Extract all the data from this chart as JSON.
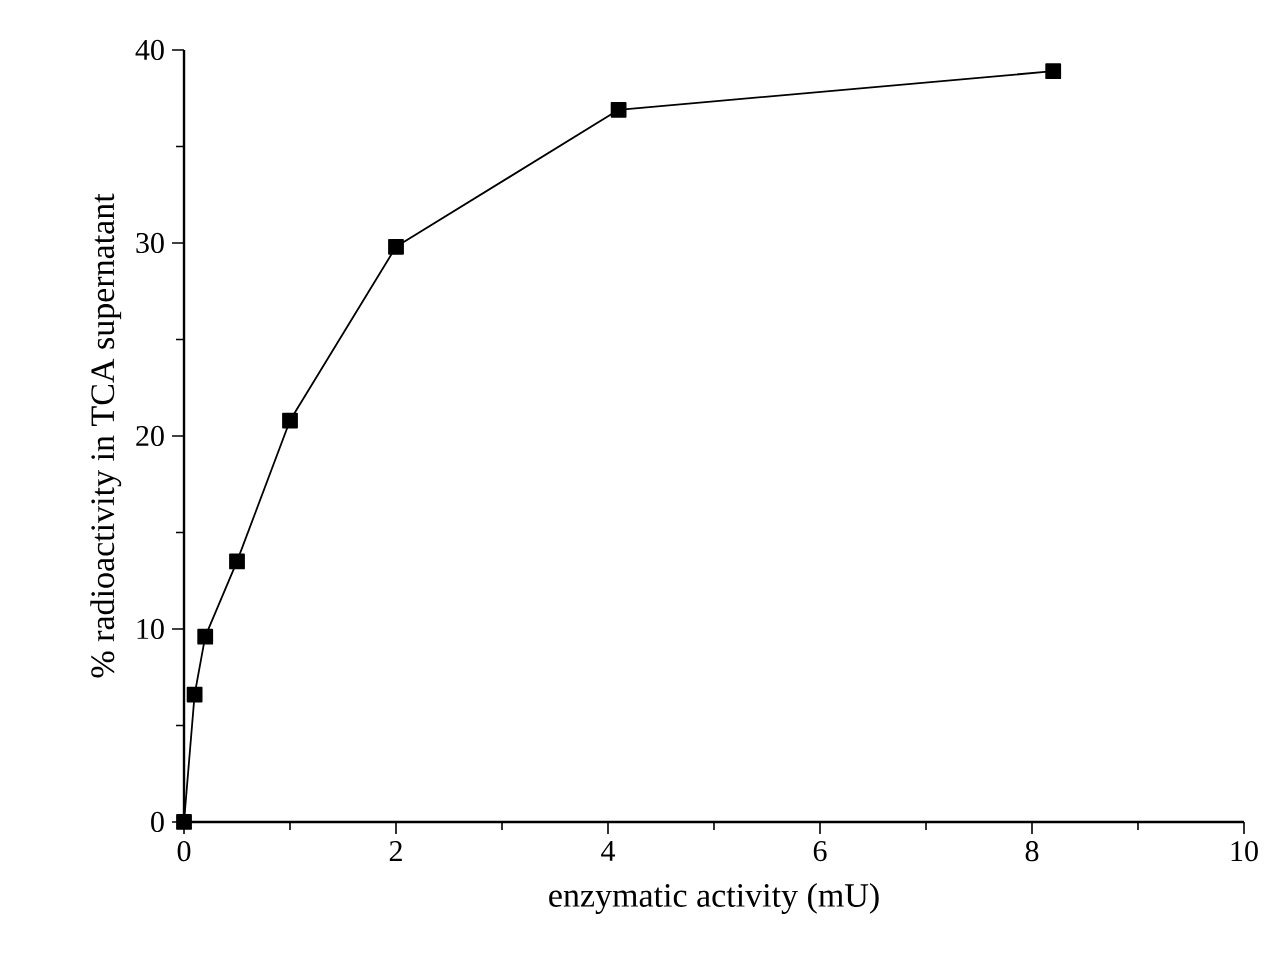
{
  "chart_data": {
    "type": "line",
    "xlabel": "enzymatic activity (mU)",
    "ylabel": "% radioactivity in TCA supernatant",
    "x": [
      0,
      0.1,
      0.2,
      0.5,
      1,
      2,
      4.1,
      8.2
    ],
    "series": [
      {
        "color": "#000000",
        "values": [
          0,
          6.6,
          9.6,
          13.5,
          20.8,
          29.8,
          36.9,
          38.9
        ]
      }
    ],
    "xlim": [
      0,
      10
    ],
    "ylim": [
      0,
      40
    ],
    "xticks": [
      0,
      2,
      4,
      6,
      8,
      10
    ],
    "yticks": [
      0,
      10,
      20,
      30,
      40
    ],
    "marker": "square",
    "line_style": "solid"
  }
}
